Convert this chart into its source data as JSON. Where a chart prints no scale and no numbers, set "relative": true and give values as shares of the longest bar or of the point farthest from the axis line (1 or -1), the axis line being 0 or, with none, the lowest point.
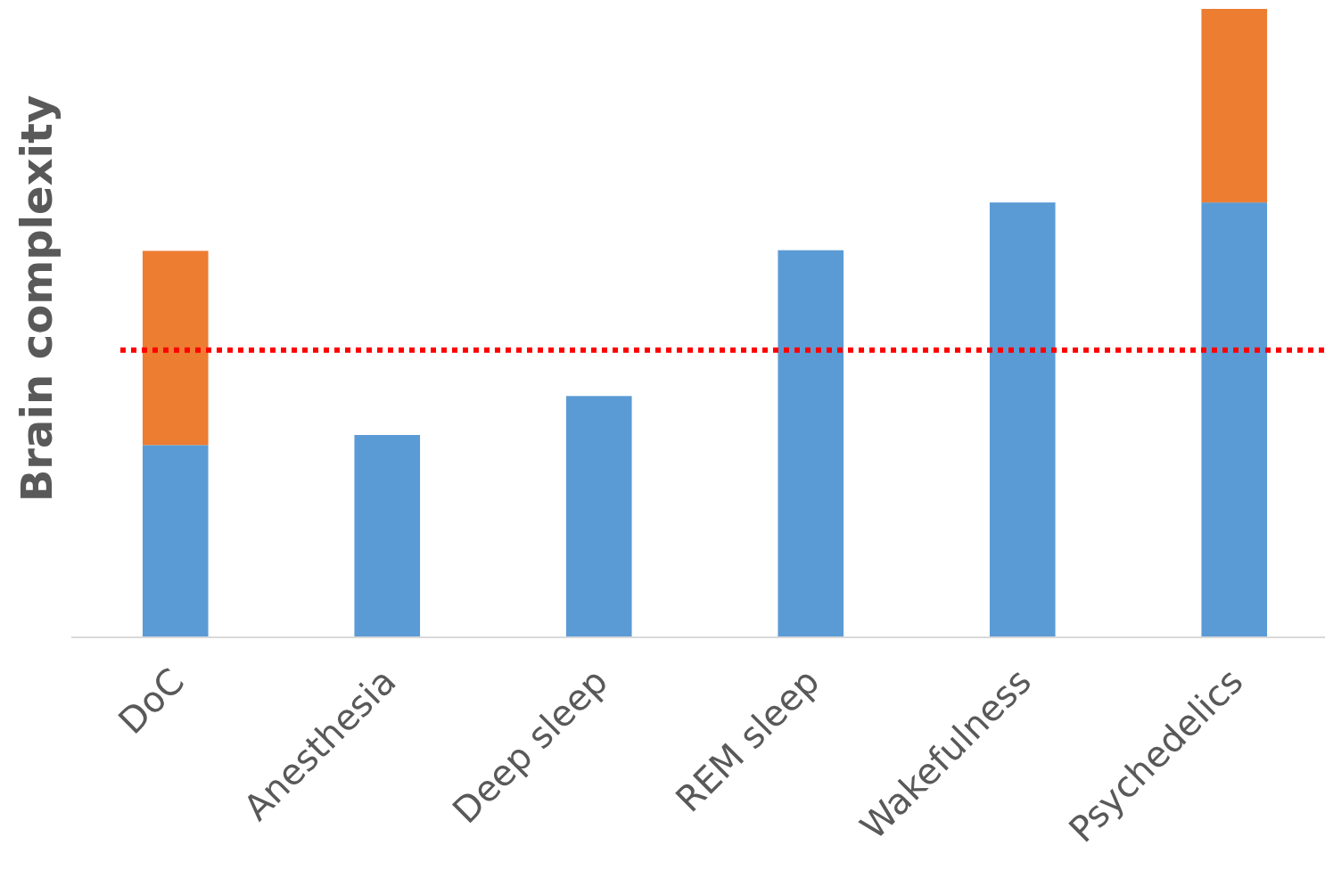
{
  "chart_data": {
    "type": "bar",
    "relative": true,
    "stacked": true,
    "ylabel": "Brain complexity",
    "categories": [
      "DoC",
      "Anesthesia",
      "Deep sleep",
      "REM sleep",
      "Wakefulness",
      "Psychedelics"
    ],
    "series": [
      {
        "color": "#5b9bd5",
        "values": [
          0.306,
          0.322,
          0.384,
          0.616,
          0.692,
          0.692
        ]
      },
      {
        "color": "#ed7d31",
        "values": [
          0.309,
          null,
          null,
          null,
          null,
          0.308
        ]
      }
    ],
    "ref_lines": [
      {
        "axis": "y",
        "value": 0.457,
        "color": "#ff0000",
        "line_style": "dotted"
      }
    ]
  }
}
